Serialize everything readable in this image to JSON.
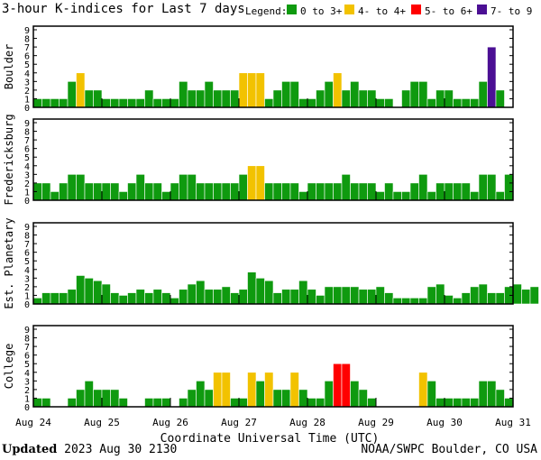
{
  "title": "3-hour K-indices for Last 7 days",
  "legend": {
    "label": "Legend:",
    "items": [
      {
        "label": "0 to 3+",
        "color": "#0f9a0f"
      },
      {
        "label": "4- to 4+",
        "color": "#f2c200"
      },
      {
        "label": "5- to 6+",
        "color": "#ff0000"
      },
      {
        "label": "7- to 9",
        "color": "#4b0f94"
      }
    ]
  },
  "footer": {
    "updated_label": "Updated",
    "updated_value": "2023 Aug 30 2130",
    "source": "NOAA/SWPC Boulder, CO USA"
  },
  "chart_data": {
    "type": "bar",
    "xlabel": "Coordinate Universal Time (UTC)",
    "x_ticks": [
      "Aug 24",
      "Aug 25",
      "Aug 26",
      "Aug 27",
      "Aug 28",
      "Aug 29",
      "Aug 30",
      "Aug 31"
    ],
    "ylim": [
      0,
      9
    ],
    "y_ticks": [
      0,
      1,
      2,
      3,
      4,
      5,
      6,
      7,
      8,
      9
    ],
    "bins_per_day": 8,
    "series": [
      {
        "name": "Boulder",
        "values": [
          1,
          1,
          1,
          1,
          3,
          4,
          2,
          2,
          1,
          1,
          1,
          1,
          1,
          2,
          1,
          1,
          1,
          3,
          2,
          2,
          3,
          2,
          2,
          2,
          4,
          4,
          4,
          1,
          2,
          3,
          3,
          1,
          1,
          2,
          3,
          4,
          2,
          3,
          2,
          2,
          1,
          1,
          0,
          2,
          3,
          3,
          1,
          2,
          2,
          1,
          1,
          1,
          3,
          7,
          2,
          0
        ]
      },
      {
        "name": "Fredericksburg",
        "values": [
          2,
          2,
          1,
          2,
          3,
          3,
          2,
          2,
          2,
          2,
          1,
          2,
          3,
          2,
          2,
          1,
          2,
          3,
          3,
          2,
          2,
          2,
          2,
          2,
          3,
          4,
          4,
          2,
          2,
          2,
          2,
          1,
          2,
          2,
          2,
          2,
          3,
          2,
          2,
          2,
          1,
          2,
          1,
          1,
          2,
          3,
          1,
          2,
          2,
          2,
          2,
          1,
          3,
          3,
          1,
          3,
          0
        ]
      },
      {
        "name": "Est. Planetary",
        "values": [
          0.7,
          1.3,
          1.3,
          1.3,
          1.7,
          3.3,
          3.0,
          2.7,
          2.3,
          1.3,
          1.0,
          1.3,
          1.7,
          1.3,
          1.7,
          1.3,
          0.7,
          1.7,
          2.3,
          2.7,
          1.7,
          1.7,
          2.0,
          1.3,
          1.7,
          3.7,
          3.0,
          2.7,
          1.3,
          1.7,
          1.7,
          2.7,
          1.7,
          1.0,
          2.0,
          2.0,
          2.0,
          2.0,
          1.7,
          1.7,
          2.0,
          1.3,
          0.7,
          0.7,
          0.7,
          0.7,
          2.0,
          2.3,
          1.0,
          0.7,
          1.3,
          2.0,
          2.3,
          1.3,
          1.3,
          2.0,
          2.3,
          1.7,
          2.0
        ]
      },
      {
        "name": "College",
        "values": [
          1,
          1,
          0,
          0,
          1,
          2,
          3,
          2,
          2,
          2,
          1,
          0,
          0,
          1,
          1,
          1,
          0,
          1,
          2,
          3,
          2,
          4,
          4,
          1,
          1,
          4,
          3,
          4,
          2,
          2,
          4,
          2,
          1,
          1,
          3,
          5,
          5,
          3,
          2,
          1,
          0,
          0,
          0,
          0,
          0,
          4,
          3,
          1,
          1,
          1,
          1,
          1,
          3,
          3,
          2,
          1,
          0
        ]
      }
    ]
  }
}
